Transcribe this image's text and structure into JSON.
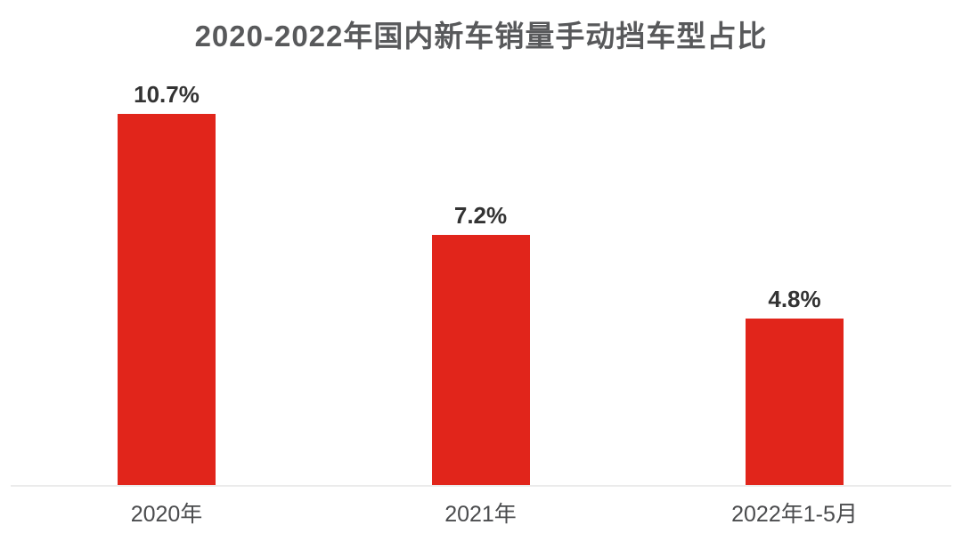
{
  "chart_data": {
    "type": "bar",
    "title": "2020-2022年国内新车销量手动挡车型占比",
    "categories": [
      "2020年",
      "2021年",
      "2022年1-5月"
    ],
    "values": [
      10.7,
      7.2,
      4.8
    ],
    "value_labels": [
      "10.7%",
      "7.2%",
      "4.8%"
    ],
    "ylim": [
      0,
      11.5
    ],
    "grid": false,
    "legend": false,
    "y_axis_visible": false,
    "bar_color": "#e1251b",
    "title_color": "#58595b",
    "value_label_color": "#333333",
    "category_label_color": "#4b4c4e",
    "baseline_color": "#ebebeb",
    "background_color": "#ffffff"
  }
}
